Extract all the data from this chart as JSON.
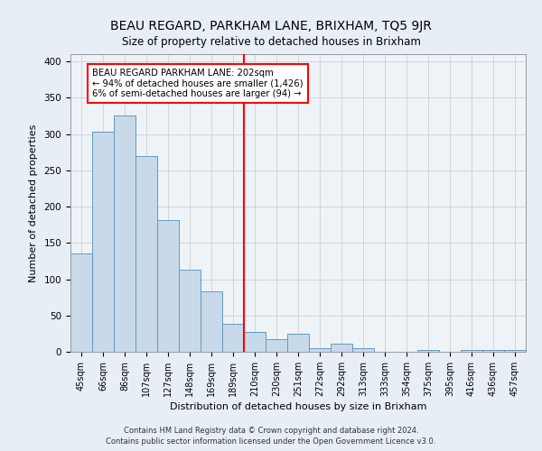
{
  "title": "BEAU REGARD, PARKHAM LANE, BRIXHAM, TQ5 9JR",
  "subtitle": "Size of property relative to detached houses in Brixham",
  "xlabel": "Distribution of detached houses by size in Brixham",
  "ylabel": "Number of detached properties",
  "bar_labels": [
    "45sqm",
    "66sqm",
    "86sqm",
    "107sqm",
    "127sqm",
    "148sqm",
    "169sqm",
    "189sqm",
    "210sqm",
    "230sqm",
    "251sqm",
    "272sqm",
    "292sqm",
    "313sqm",
    "333sqm",
    "354sqm",
    "375sqm",
    "395sqm",
    "416sqm",
    "436sqm",
    "457sqm"
  ],
  "bar_values": [
    135,
    303,
    325,
    270,
    181,
    113,
    83,
    38,
    27,
    18,
    25,
    5,
    11,
    5,
    0,
    0,
    3,
    0,
    3,
    3,
    3
  ],
  "bar_color": "#c8d9ea",
  "bar_edge_color": "#6699bb",
  "vline_color": "red",
  "annotation_title": "BEAU REGARD PARKHAM LANE: 202sqm",
  "annotation_line1": "← 94% of detached houses are smaller (1,426)",
  "annotation_line2": "6% of semi-detached houses are larger (94) →",
  "annotation_box_color": "white",
  "annotation_box_edge": "red",
  "ylim": [
    0,
    410
  ],
  "yticks": [
    0,
    50,
    100,
    150,
    200,
    250,
    300,
    350,
    400
  ],
  "footer1": "Contains HM Land Registry data © Crown copyright and database right 2024.",
  "footer2": "Contains public sector information licensed under the Open Government Licence v3.0.",
  "bg_color": "#e8eef5",
  "plot_bg_color": "#eef3f8"
}
